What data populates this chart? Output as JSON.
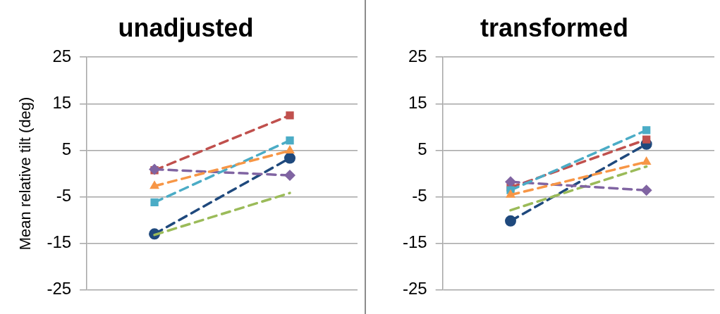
{
  "chart_data": [
    {
      "type": "line",
      "title": "unadjusted",
      "ylabel": "Mean relative tilt (deg)",
      "categories": [
        null,
        null
      ],
      "ylim": [
        -25,
        25
      ],
      "yticks": [
        -25,
        -15,
        -5,
        5,
        15,
        25
      ],
      "grid": "y",
      "legend": false,
      "line_style": "dashed",
      "series": [
        {
          "color": "#1f497d",
          "marker": "circle",
          "values": [
            -13.0,
            3.3
          ]
        },
        {
          "color": "#c0504d",
          "marker": "square",
          "values": [
            0.7,
            12.5
          ]
        },
        {
          "color": "#9bbb59",
          "marker": "none",
          "values": [
            -13.2,
            -4.2
          ]
        },
        {
          "color": "#8064a2",
          "marker": "diamond",
          "values": [
            0.9,
            -0.4
          ]
        },
        {
          "color": "#4bacc6",
          "marker": "square",
          "values": [
            -6.2,
            7.1
          ]
        },
        {
          "color": "#f79646",
          "marker": "triangle",
          "values": [
            -2.7,
            4.9
          ]
        }
      ]
    },
    {
      "type": "line",
      "title": "transformed",
      "categories": [
        null,
        null
      ],
      "ylim": [
        -25,
        25
      ],
      "yticks": [
        -25,
        -15,
        -5,
        5,
        15,
        25
      ],
      "grid": "y",
      "legend": false,
      "line_style": "dashed",
      "series": [
        {
          "color": "#1f497d",
          "marker": "circle",
          "values": [
            -10.2,
            6.3
          ]
        },
        {
          "color": "#c0504d",
          "marker": "square",
          "values": [
            -3.0,
            7.3
          ]
        },
        {
          "color": "#9bbb59",
          "marker": "none",
          "values": [
            -7.9,
            1.5
          ]
        },
        {
          "color": "#8064a2",
          "marker": "diamond",
          "values": [
            -1.8,
            -3.6
          ]
        },
        {
          "color": "#4bacc6",
          "marker": "square",
          "values": [
            -3.6,
            9.3
          ]
        },
        {
          "color": "#f79646",
          "marker": "triangle",
          "values": [
            -4.6,
            2.5
          ]
        }
      ]
    }
  ]
}
